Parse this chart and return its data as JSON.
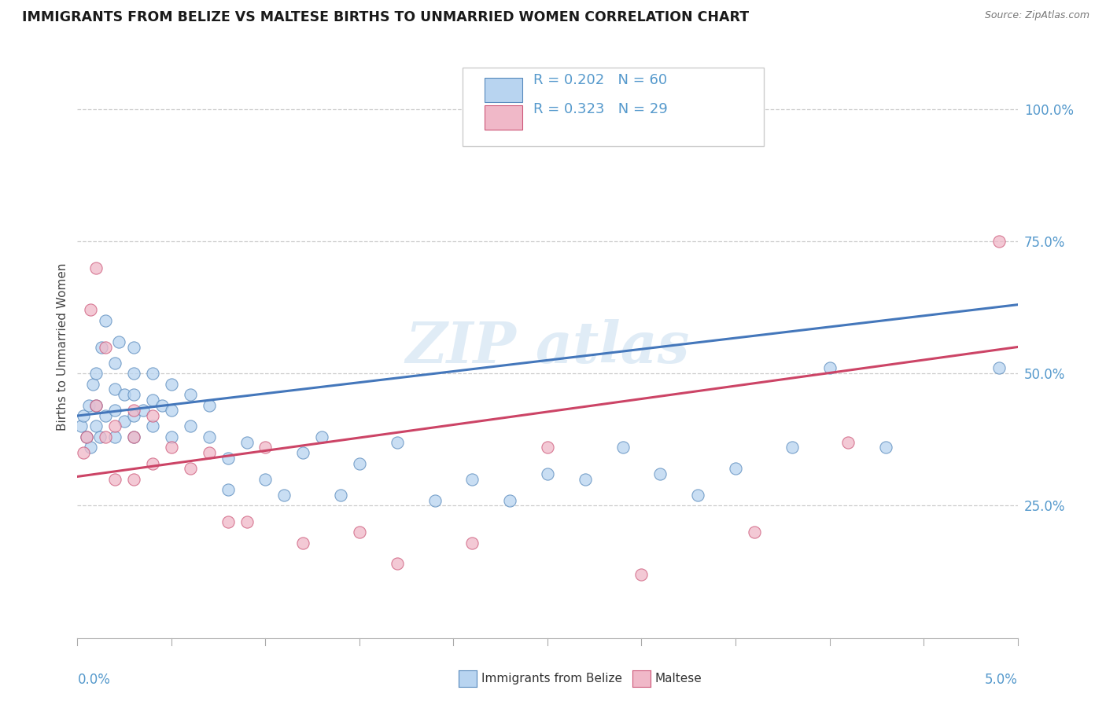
{
  "title": "IMMIGRANTS FROM BELIZE VS MALTESE BIRTHS TO UNMARRIED WOMEN CORRELATION CHART",
  "source": "Source: ZipAtlas.com",
  "ylabel": "Births to Unmarried Women",
  "xrange": [
    0.0,
    0.05
  ],
  "yrange": [
    0.0,
    1.1
  ],
  "legend_blue_r": "0.202",
  "legend_blue_n": "60",
  "legend_pink_r": "0.323",
  "legend_pink_n": "29",
  "blue_fill": "#b8d4f0",
  "pink_fill": "#f0b8c8",
  "blue_edge": "#5588bb",
  "pink_edge": "#cc5577",
  "blue_line": "#4477bb",
  "pink_line": "#cc4466",
  "grid_color": "#cccccc",
  "ytick_color": "#5599cc",
  "xtick_color": "#5599cc",
  "blue_intercept": 0.42,
  "blue_slope": 4.2,
  "pink_intercept": 0.305,
  "pink_slope": 4.9,
  "blue_x": [
    0.0002,
    0.0003,
    0.0005,
    0.0006,
    0.0007,
    0.0008,
    0.001,
    0.001,
    0.001,
    0.0012,
    0.0013,
    0.0015,
    0.0015,
    0.002,
    0.002,
    0.002,
    0.002,
    0.0022,
    0.0025,
    0.0025,
    0.003,
    0.003,
    0.003,
    0.003,
    0.003,
    0.0035,
    0.004,
    0.004,
    0.004,
    0.0045,
    0.005,
    0.005,
    0.005,
    0.006,
    0.006,
    0.007,
    0.007,
    0.008,
    0.008,
    0.009,
    0.01,
    0.011,
    0.012,
    0.013,
    0.014,
    0.015,
    0.017,
    0.019,
    0.021,
    0.023,
    0.025,
    0.027,
    0.029,
    0.031,
    0.033,
    0.035,
    0.038,
    0.04,
    0.043,
    0.049
  ],
  "blue_y": [
    0.4,
    0.42,
    0.38,
    0.44,
    0.36,
    0.48,
    0.4,
    0.44,
    0.5,
    0.38,
    0.55,
    0.42,
    0.6,
    0.38,
    0.43,
    0.47,
    0.52,
    0.56,
    0.41,
    0.46,
    0.38,
    0.42,
    0.46,
    0.5,
    0.55,
    0.43,
    0.4,
    0.45,
    0.5,
    0.44,
    0.38,
    0.43,
    0.48,
    0.4,
    0.46,
    0.38,
    0.44,
    0.28,
    0.34,
    0.37,
    0.3,
    0.27,
    0.35,
    0.38,
    0.27,
    0.33,
    0.37,
    0.26,
    0.3,
    0.26,
    0.31,
    0.3,
    0.36,
    0.31,
    0.27,
    0.32,
    0.36,
    0.51,
    0.36,
    0.51
  ],
  "pink_x": [
    0.0003,
    0.0005,
    0.0007,
    0.001,
    0.001,
    0.0015,
    0.0015,
    0.002,
    0.002,
    0.003,
    0.003,
    0.003,
    0.004,
    0.004,
    0.005,
    0.006,
    0.007,
    0.008,
    0.009,
    0.01,
    0.012,
    0.015,
    0.017,
    0.021,
    0.025,
    0.03,
    0.036,
    0.041,
    0.049
  ],
  "pink_y": [
    0.35,
    0.38,
    0.62,
    0.7,
    0.44,
    0.55,
    0.38,
    0.4,
    0.3,
    0.38,
    0.43,
    0.3,
    0.42,
    0.33,
    0.36,
    0.32,
    0.35,
    0.22,
    0.22,
    0.36,
    0.18,
    0.2,
    0.14,
    0.18,
    0.36,
    0.12,
    0.2,
    0.37,
    0.75
  ]
}
